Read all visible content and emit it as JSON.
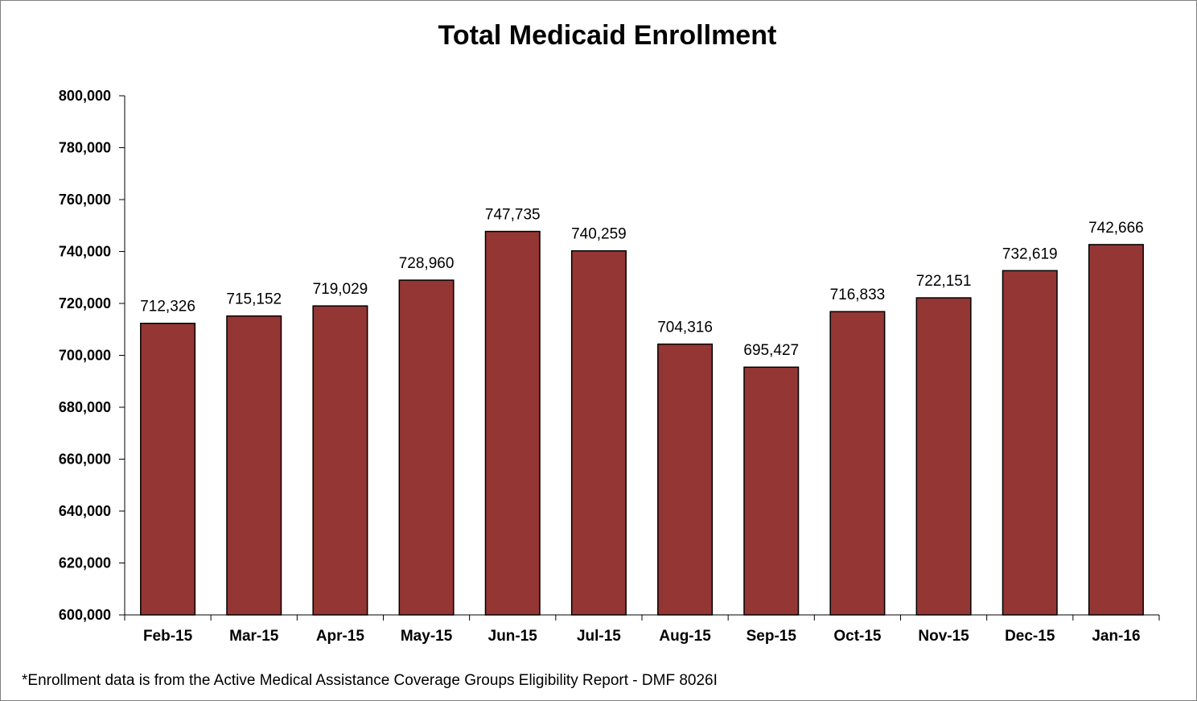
{
  "chart_data": {
    "type": "bar",
    "title": "Total Medicaid Enrollment",
    "categories": [
      "Feb-15",
      "Mar-15",
      "Apr-15",
      "May-15",
      "Jun-15",
      "Jul-15",
      "Aug-15",
      "Sep-15",
      "Oct-15",
      "Nov-15",
      "Dec-15",
      "Jan-16"
    ],
    "values": [
      712326,
      715152,
      719029,
      728960,
      747735,
      740259,
      704316,
      695427,
      716833,
      722151,
      732619,
      742666
    ],
    "data_labels": [
      "712,326",
      "715,152",
      "719,029",
      "728,960",
      "747,735",
      "740,259",
      "704,316",
      "695,427",
      "716,833",
      "722,151",
      "732,619",
      "742,666"
    ],
    "ylim": [
      600000,
      800000
    ],
    "y_ticks": [
      600000,
      620000,
      640000,
      660000,
      680000,
      700000,
      720000,
      740000,
      760000,
      780000,
      800000
    ],
    "y_tick_labels": [
      "600,000",
      "620,000",
      "640,000",
      "660,000",
      "680,000",
      "700,000",
      "720,000",
      "740,000",
      "760,000",
      "780,000",
      "800,000"
    ],
    "xlabel": "",
    "ylabel": "",
    "grid": false,
    "legend": "none",
    "bar_color": "#943634",
    "footnote": "*Enrollment data is from the Active Medical Assistance Coverage Groups Eligibility Report - DMF 8026I"
  }
}
